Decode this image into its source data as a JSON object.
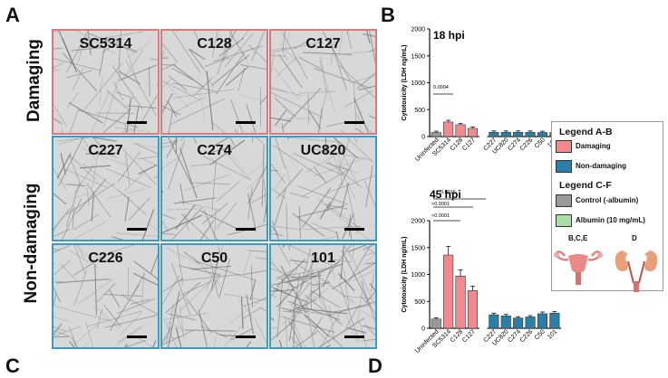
{
  "panels": {
    "a": "A",
    "b": "B",
    "c": "C",
    "d": "D"
  },
  "row_labels": {
    "damaging": "Damaging",
    "non_damaging": "Non-damaging"
  },
  "tiles": [
    {
      "label": "SC5314",
      "group": "damaging"
    },
    {
      "label": "C128",
      "group": "damaging"
    },
    {
      "label": "C127",
      "group": "damaging"
    },
    {
      "label": "C227",
      "group": "non-damaging"
    },
    {
      "label": "C274",
      "group": "non-damaging"
    },
    {
      "label": "UC820",
      "group": "non-damaging"
    },
    {
      "label": "C226",
      "group": "non-damaging"
    },
    {
      "label": "C50",
      "group": "non-damaging"
    },
    {
      "label": "101",
      "group": "non-damaging"
    }
  ],
  "legend": {
    "title_ab": "Legend A-B",
    "damaging": "Damaging",
    "non_damaging": "Non-damaging",
    "title_cf": "Legend C-F",
    "control": "Control (-albumin)",
    "albumin": "Albumin (10 mg/mL)",
    "organ1": "B,C,E",
    "organ2": "D"
  },
  "colors": {
    "damaging": "#f08a8e",
    "non_damaging": "#2b7fa6",
    "control": "#9a9a9a",
    "albumin": "#a8dea8",
    "damaging_border": "#e0757a",
    "non_damaging_border": "#3a9ac8"
  },
  "chart_data": [
    {
      "type": "bar",
      "title": "18 hpi",
      "ylabel": "Cytotoxicity (LDH ng/mL)",
      "ylim": [
        0,
        2000
      ],
      "yticks": [
        "0",
        "500",
        "1000",
        "1500",
        "2000"
      ],
      "categories": [
        "Uninfected",
        "SC5314",
        "C128",
        "C127",
        "C227",
        "UC820",
        "C274",
        "C226",
        "C50",
        "101"
      ],
      "values": [
        75,
        270,
        220,
        150,
        80,
        80,
        80,
        80,
        75,
        75
      ],
      "groups": [
        "control",
        "damaging",
        "damaging",
        "damaging",
        "non_damaging",
        "non_damaging",
        "non_damaging",
        "non_damaging",
        "non_damaging",
        "non_damaging"
      ],
      "annotations": [
        {
          "text": "0.0004"
        }
      ]
    },
    {
      "type": "bar",
      "title": "45 hpi",
      "ylabel": "Cytotoxicity (LDH ng/mL)",
      "ylim": [
        0,
        2000
      ],
      "yticks": [
        "0",
        "500",
        "1000",
        "1500",
        "2000"
      ],
      "categories": [
        "Uninfected",
        "SC5314",
        "C128",
        "C127",
        "C227",
        "UC820",
        "C274",
        "C226",
        "C50",
        "101"
      ],
      "values": [
        170,
        1360,
        970,
        700,
        250,
        230,
        190,
        210,
        270,
        280
      ],
      "groups": [
        "control",
        "damaging",
        "damaging",
        "damaging",
        "non_damaging",
        "non_damaging",
        "non_damaging",
        "non_damaging",
        "non_damaging",
        "non_damaging"
      ],
      "annotations": [
        {
          "text": "0.0016"
        },
        {
          "text": "<0.0001"
        },
        {
          "text": "<0.0001"
        }
      ]
    }
  ]
}
